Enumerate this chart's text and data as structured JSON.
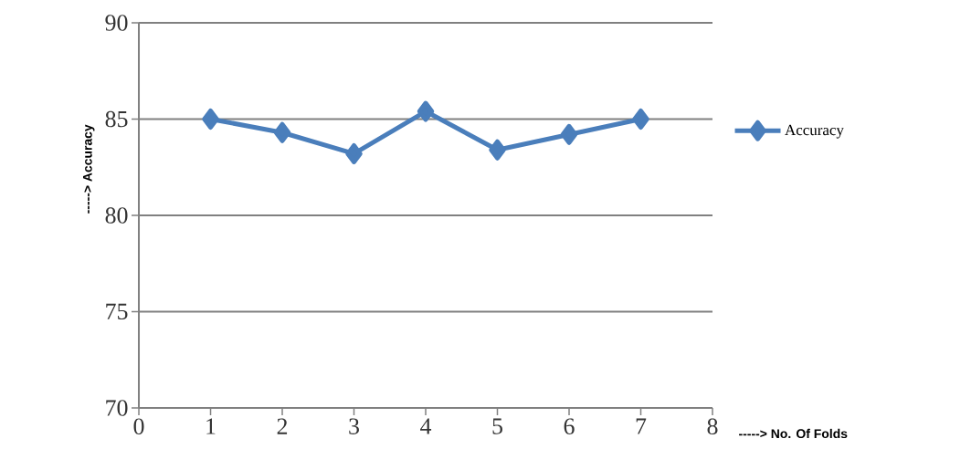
{
  "chart_data": {
    "type": "line",
    "xlabel": "-----> No. Of Folds",
    "ylabel": "-----> Accuracy",
    "x": [
      1,
      2,
      3,
      4,
      5,
      6,
      7
    ],
    "series": [
      {
        "name": "Accuracy",
        "color": "#4a7ebb",
        "values": [
          85.0,
          84.3,
          83.2,
          85.4,
          83.4,
          84.2,
          85.0
        ]
      }
    ],
    "xlim": [
      0,
      8
    ],
    "ylim": [
      70,
      90
    ],
    "xticks": [
      0,
      1,
      2,
      3,
      4,
      5,
      6,
      7,
      8
    ],
    "yticks": [
      70,
      75,
      80,
      85,
      90
    ],
    "grid": "y",
    "legend": "right",
    "marker": "diamond",
    "line_style": "solid"
  }
}
